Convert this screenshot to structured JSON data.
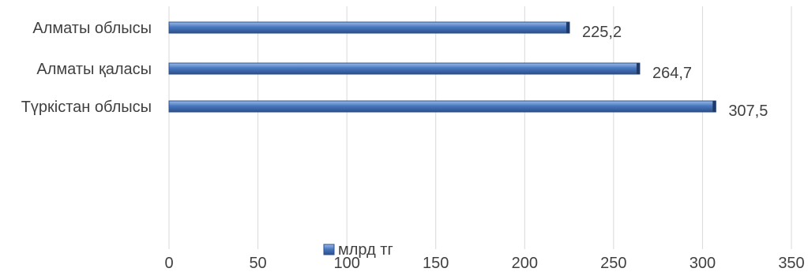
{
  "chart_data": {
    "type": "bar",
    "orientation": "horizontal",
    "categories": [
      "Алматы облысы",
      "Алматы қаласы",
      "Түркістан облысы"
    ],
    "series": [
      {
        "name": "млрд тг",
        "values": [
          225.2,
          264.7,
          307.5
        ],
        "value_labels": [
          "225,2",
          "264,7",
          "307,5"
        ]
      }
    ],
    "xlim": [
      0,
      350
    ],
    "xticks": [
      0,
      50,
      100,
      150,
      200,
      250,
      300,
      350
    ],
    "grid": "vertical",
    "legend": "bottom",
    "colors": {
      "bar": "#4a78c0",
      "bar_light": "#7ea3da",
      "bar_dark": "#2b4f8a",
      "grid": "#d9d9d9",
      "text": "#404040"
    }
  }
}
